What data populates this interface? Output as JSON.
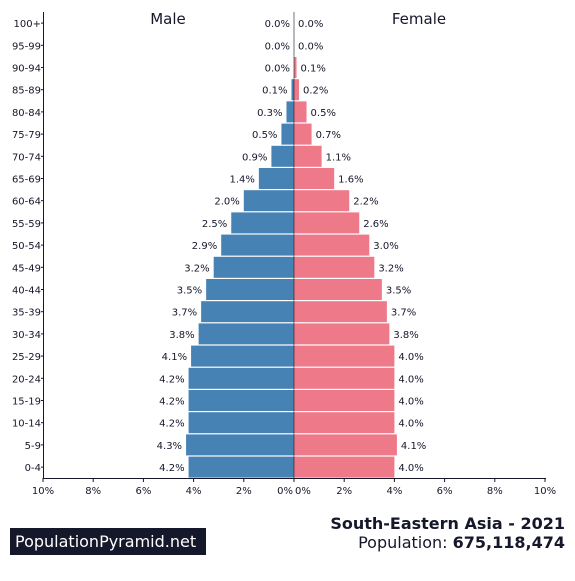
{
  "chart_data": {
    "type": "bar",
    "orientation": "horizontal-pyramid",
    "categories": [
      "100+",
      "95-99",
      "90-94",
      "85-89",
      "80-84",
      "75-79",
      "70-74",
      "65-69",
      "60-64",
      "55-59",
      "50-54",
      "45-49",
      "40-44",
      "35-39",
      "30-34",
      "25-29",
      "20-24",
      "15-19",
      "10-14",
      "5-9",
      "0-4"
    ],
    "series": [
      {
        "name": "Male",
        "color": "#4682b4",
        "values": [
          0.0,
          0.0,
          0.0,
          0.1,
          0.3,
          0.5,
          0.9,
          1.4,
          2.0,
          2.5,
          2.9,
          3.2,
          3.5,
          3.7,
          3.8,
          4.1,
          4.2,
          4.2,
          4.2,
          4.3,
          4.2
        ],
        "labels": [
          "0.0%",
          "0.0%",
          "0.0%",
          "0.1%",
          "0.3%",
          "0.5%",
          "0.9%",
          "1.4%",
          "2.0%",
          "2.5%",
          "2.9%",
          "3.2%",
          "3.5%",
          "3.7%",
          "3.8%",
          "4.1%",
          "4.2%",
          "4.2%",
          "4.2%",
          "4.3%",
          "4.2%"
        ]
      },
      {
        "name": "Female",
        "color": "#ee7989",
        "values": [
          0.0,
          0.0,
          0.1,
          0.2,
          0.5,
          0.7,
          1.1,
          1.6,
          2.2,
          2.6,
          3.0,
          3.2,
          3.5,
          3.7,
          3.8,
          4.0,
          4.0,
          4.0,
          4.0,
          4.1,
          4.0
        ],
        "labels": [
          "0.0%",
          "0.0%",
          "0.1%",
          "0.2%",
          "0.5%",
          "0.7%",
          "1.1%",
          "1.6%",
          "2.2%",
          "2.6%",
          "3.0%",
          "3.2%",
          "3.5%",
          "3.7%",
          "3.8%",
          "4.0%",
          "4.0%",
          "4.0%",
          "4.0%",
          "4.1%",
          "4.0%"
        ]
      }
    ],
    "xlim": [
      0,
      10
    ],
    "x_ticks_left": [
      "10%",
      "8%",
      "6%",
      "4%",
      "2%",
      "0%"
    ],
    "x_ticks_right": [
      "0%",
      "2%",
      "4%",
      "6%",
      "8%",
      "10%"
    ],
    "grid": false
  },
  "headings": {
    "male": "Male",
    "female": "Female"
  },
  "footer": {
    "logo": "PopulationPyramid.net",
    "title": "South-Eastern Asia - 2021",
    "population_label": "Population: ",
    "population_value": "675,118,474"
  }
}
